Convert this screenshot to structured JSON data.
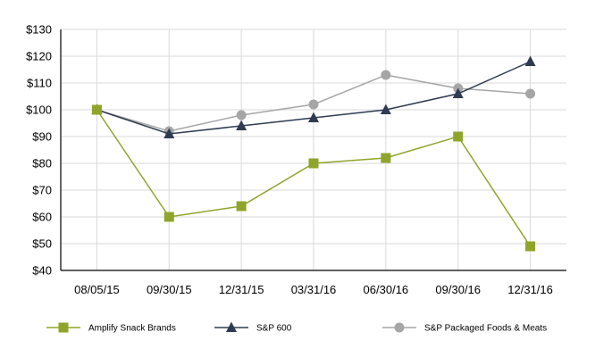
{
  "chart_data": {
    "type": "line",
    "categories": [
      "08/05/15",
      "09/30/15",
      "12/31/15",
      "03/31/16",
      "06/30/16",
      "09/30/16",
      "12/31/16"
    ],
    "ylim": [
      40,
      130
    ],
    "yticks": [
      40,
      50,
      60,
      70,
      80,
      90,
      100,
      110,
      120,
      130
    ],
    "ytick_labels": [
      "$40",
      "$50",
      "$60",
      "$70",
      "$80",
      "$90",
      "$100",
      "$110",
      "$120",
      "$130"
    ],
    "grid": true,
    "legend_position": "bottom",
    "series": [
      {
        "name": "Amplify Snack Brands",
        "color": "#8ea52a",
        "marker": "square",
        "values": [
          100,
          60,
          64,
          80,
          82,
          90,
          49
        ]
      },
      {
        "name": "S&P 600",
        "color": "#2f3b52",
        "marker": "triangle",
        "values": [
          100,
          91,
          94,
          97,
          100,
          106,
          118
        ]
      },
      {
        "name": "S&P Packaged Foods & Meats",
        "color": "#a6a6a6",
        "marker": "circle",
        "values": [
          100,
          92,
          98,
          102,
          113,
          108,
          106
        ]
      }
    ]
  }
}
